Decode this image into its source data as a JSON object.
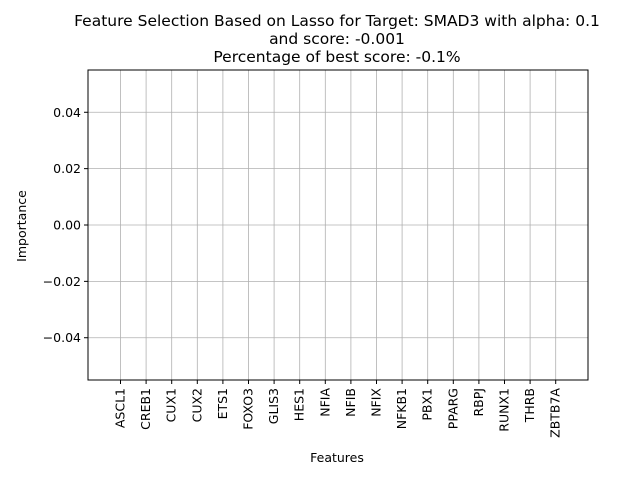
{
  "chart_data": {
    "type": "bar",
    "title_lines": [
      "Feature Selection Based on Lasso for Target: SMAD3 with alpha: 0.1",
      "and score: -0.001",
      "Percentage of best score: -0.1%"
    ],
    "xlabel": "Features",
    "ylabel": "Importance",
    "categories": [
      "ASCL1",
      "CREB1",
      "CUX1",
      "CUX2",
      "ETS1",
      "FOXO3",
      "GLIS3",
      "HES1",
      "NFIA",
      "NFIB",
      "NFIX",
      "NFKB1",
      "PBX1",
      "PPARG",
      "RBPJ",
      "RUNX1",
      "THRB",
      "ZBTB7A"
    ],
    "values": [
      0,
      0,
      0,
      0,
      0,
      0,
      0,
      0,
      0,
      0,
      0,
      0,
      0,
      0,
      0,
      0,
      0,
      0
    ],
    "ylim": [
      -0.055,
      0.055
    ],
    "yticks": [
      -0.04,
      -0.02,
      0.0,
      0.02,
      0.04
    ],
    "ytick_labels": [
      "−0.04",
      "−0.02",
      "0.00",
      "0.02",
      "0.04"
    ],
    "grid": true,
    "colors": {
      "grid": "#b0b0b0",
      "axis": "#000000",
      "bar": "#1f77b4"
    }
  }
}
